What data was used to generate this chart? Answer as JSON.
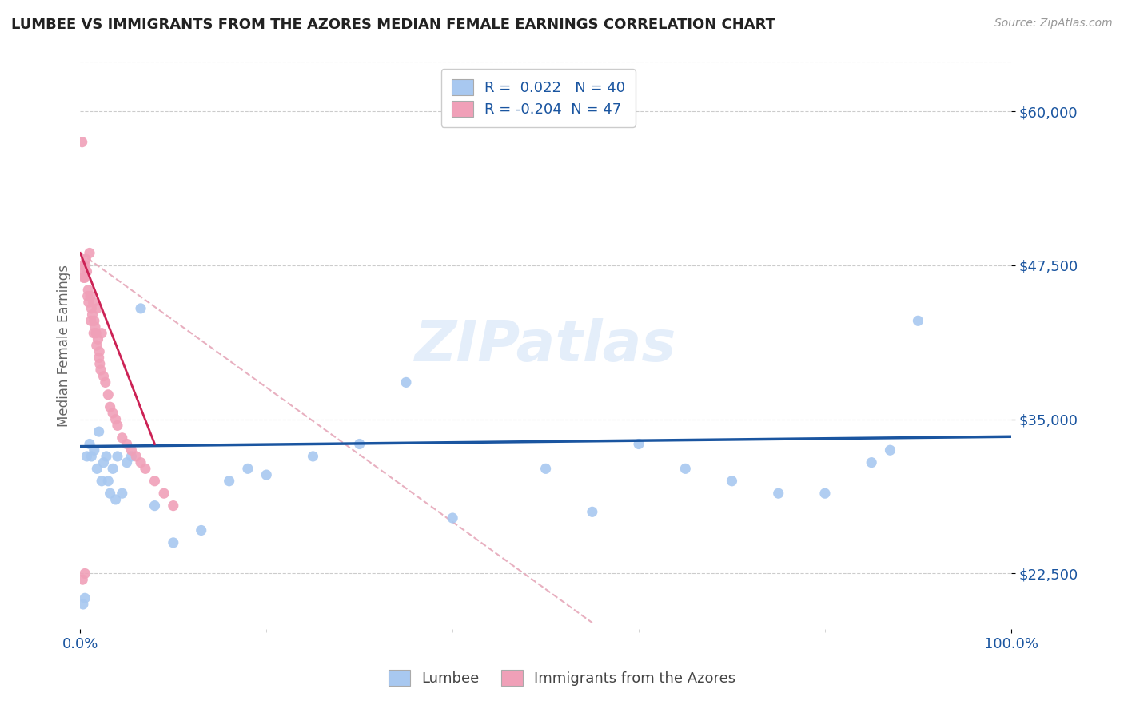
{
  "title": "LUMBEE VS IMMIGRANTS FROM THE AZORES MEDIAN FEMALE EARNINGS CORRELATION CHART",
  "source": "Source: ZipAtlas.com",
  "ylabel": "Median Female Earnings",
  "xlim": [
    0.0,
    100.0
  ],
  "ylim": [
    18000,
    64000
  ],
  "yticks": [
    22500,
    35000,
    47500,
    60000
  ],
  "ytick_labels": [
    "$22,500",
    "$35,000",
    "$47,500",
    "$60,000"
  ],
  "background_color": "#ffffff",
  "grid_color": "#cccccc",
  "watermark_text": "ZIPatlas",
  "lumbee_color": "#a8c8f0",
  "azores_color": "#f0a0b8",
  "lumbee_R": 0.022,
  "lumbee_N": 40,
  "azores_R": -0.204,
  "azores_N": 47,
  "lumbee_line_color": "#1a55a0",
  "azores_line_color": "#cc2255",
  "azores_dash_color": "#e8b0c0",
  "lumbee_scatter_x": [
    0.3,
    0.5,
    0.7,
    1.0,
    1.2,
    1.5,
    1.8,
    2.0,
    2.3,
    2.5,
    2.8,
    3.0,
    3.2,
    3.5,
    3.8,
    4.0,
    4.5,
    5.0,
    5.5,
    6.5,
    8.0,
    10.0,
    13.0,
    16.0,
    18.0,
    25.0,
    30.0,
    40.0,
    50.0,
    60.0,
    70.0,
    75.0,
    80.0,
    85.0,
    87.0,
    90.0,
    20.0,
    35.0,
    55.0,
    65.0
  ],
  "lumbee_scatter_y": [
    20000,
    20500,
    32000,
    33000,
    32000,
    32500,
    31000,
    34000,
    30000,
    31500,
    32000,
    30000,
    29000,
    31000,
    28500,
    32000,
    29000,
    31500,
    32000,
    44000,
    28000,
    25000,
    26000,
    30000,
    31000,
    32000,
    33000,
    27000,
    31000,
    33000,
    30000,
    29000,
    29000,
    31500,
    32500,
    43000,
    30500,
    38000,
    27500,
    31000
  ],
  "azores_scatter_x": [
    0.2,
    0.3,
    0.4,
    0.5,
    0.6,
    0.7,
    0.8,
    0.9,
    1.0,
    1.1,
    1.2,
    1.3,
    1.4,
    1.5,
    1.6,
    1.7,
    1.8,
    1.9,
    2.0,
    2.1,
    2.2,
    2.3,
    2.5,
    2.7,
    3.0,
    3.2,
    3.5,
    3.8,
    4.0,
    4.5,
    5.0,
    5.5,
    6.0,
    6.5,
    7.0,
    8.0,
    9.0,
    10.0,
    0.35,
    0.55,
    0.85,
    1.15,
    1.45,
    1.75,
    2.05,
    0.5,
    0.25
  ],
  "azores_scatter_y": [
    57500,
    47500,
    47000,
    46500,
    48000,
    47000,
    45000,
    44500,
    48500,
    45000,
    44000,
    43500,
    44500,
    43000,
    42500,
    42000,
    44000,
    41500,
    40000,
    39500,
    39000,
    42000,
    38500,
    38000,
    37000,
    36000,
    35500,
    35000,
    34500,
    33500,
    33000,
    32500,
    32000,
    31500,
    31000,
    30000,
    29000,
    28000,
    46500,
    47500,
    45500,
    43000,
    42000,
    41000,
    40500,
    22500,
    22000
  ],
  "lumbee_trend_x0": 0,
  "lumbee_trend_x1": 100,
  "lumbee_trend_y0": 32800,
  "lumbee_trend_y1": 33600,
  "azores_solid_x0": 0,
  "azores_solid_x1": 8,
  "azores_solid_y0": 48500,
  "azores_solid_y1": 33000,
  "azores_dash_x0": 0,
  "azores_dash_x1": 55,
  "azores_dash_y0": 48500,
  "azores_dash_y1": 18500,
  "title_color": "#222222",
  "tick_label_color": "#1a55a0",
  "ylabel_color": "#666666"
}
